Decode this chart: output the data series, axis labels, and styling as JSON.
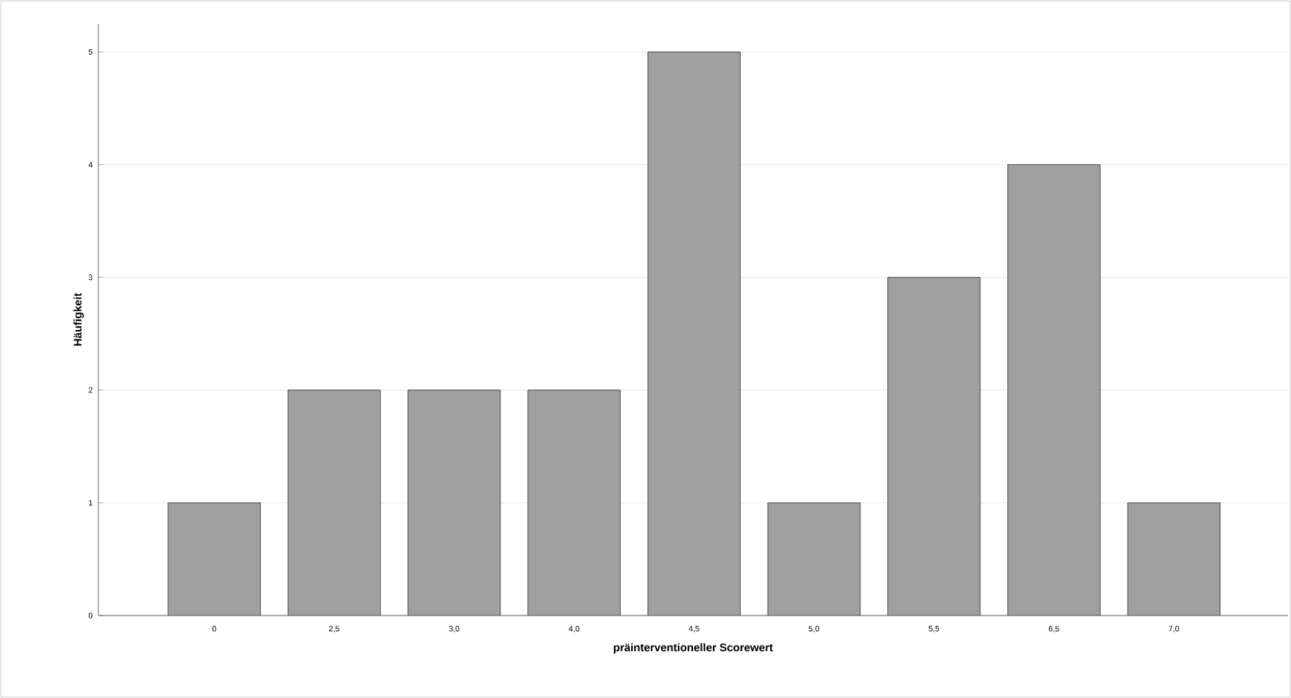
{
  "chart_data": {
    "type": "bar",
    "xlabel": "präinterventioneller Scorewert",
    "ylabel": "Häufigkeit",
    "categories": [
      "0",
      "2,5",
      "3,0",
      "4,0",
      "4,5",
      "5,0",
      "5,5",
      "6,5",
      "7,0"
    ],
    "values": [
      1,
      2,
      2,
      2,
      5,
      1,
      3,
      4,
      1
    ],
    "color": "#a0a0a0",
    "ylim": [
      0,
      5.25
    ],
    "yticks": [
      0,
      1,
      2,
      3,
      4,
      5
    ],
    "grid": "y"
  }
}
